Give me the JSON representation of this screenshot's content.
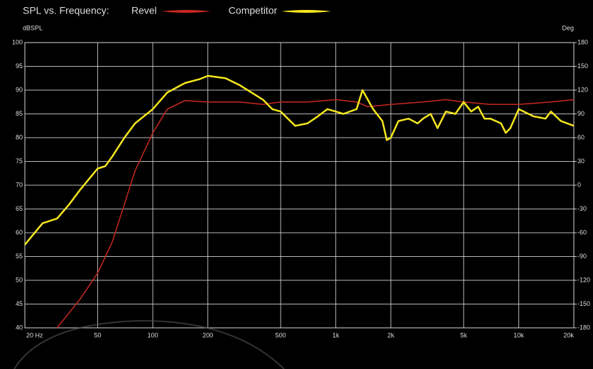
{
  "chart_data": {
    "type": "line",
    "title": "SPL vs. Frequency:",
    "y_label": "dBSPL",
    "y2_label": "Deg",
    "log_x": true,
    "grid": true,
    "xlim": [
      20,
      20000
    ],
    "xticks": [
      {
        "value": 20,
        "label": "20 Hz"
      },
      50,
      100,
      200,
      500,
      {
        "value": 1000,
        "label": "1k"
      },
      {
        "value": 2000,
        "label": "2k"
      },
      {
        "value": 5000,
        "label": "5k"
      },
      {
        "value": 10000,
        "label": "10k"
      },
      {
        "value": 20000,
        "label": "20k"
      }
    ],
    "ylim": [
      40,
      100
    ],
    "yticks": [
      40,
      45,
      50,
      55,
      60,
      65,
      70,
      75,
      80,
      85,
      90,
      95,
      100
    ],
    "y2lim": [
      -180,
      180
    ],
    "y2ticks": [
      -180,
      -150,
      -120,
      -90,
      -60,
      -30,
      0,
      30,
      60,
      90,
      120,
      150,
      180
    ],
    "series": [
      {
        "name": "Revel",
        "color": "#c8281e",
        "x": [
          30,
          40,
          50,
          60,
          70,
          80,
          100,
          120,
          150,
          200,
          300,
          400,
          500,
          700,
          1000,
          1300,
          1500,
          2000,
          3000,
          4000,
          5000,
          7000,
          10000,
          15000,
          20000
        ],
        "values": [
          40,
          46,
          51.5,
          58,
          66,
          73,
          81,
          86,
          87.8,
          87.5,
          87.5,
          87,
          87.5,
          87.5,
          88,
          87.5,
          86.5,
          87,
          87.5,
          88,
          87.5,
          87,
          87,
          87.5,
          88
        ]
      },
      {
        "name": "Competitor",
        "color": "#f5e61e",
        "x": [
          20,
          25,
          30,
          35,
          40,
          50,
          55,
          60,
          70,
          80,
          100,
          120,
          150,
          180,
          200,
          250,
          300,
          400,
          450,
          500,
          600,
          700,
          800,
          900,
          1000,
          1100,
          1300,
          1400,
          1600,
          1800,
          1900,
          2000,
          2200,
          2500,
          2800,
          3000,
          3300,
          3600,
          4000,
          4500,
          5000,
          5500,
          6000,
          6500,
          7000,
          8000,
          8500,
          9000,
          10000,
          12000,
          14000,
          15000,
          17000,
          20000
        ],
        "values": [
          57.5,
          62,
          63,
          66,
          69,
          73.5,
          74,
          76,
          80,
          83,
          86,
          89.5,
          91.5,
          92.3,
          93,
          92.5,
          91,
          88,
          86,
          85.5,
          82.5,
          83,
          84.5,
          86,
          85.5,
          85,
          86,
          90,
          86,
          83.5,
          79.5,
          80,
          83.5,
          84,
          83,
          84,
          85,
          82,
          85.5,
          85,
          87.5,
          85.5,
          86.5,
          84,
          84,
          83,
          81,
          82,
          86,
          84.5,
          84,
          85.5,
          83.5,
          82.5
        ]
      }
    ]
  }
}
